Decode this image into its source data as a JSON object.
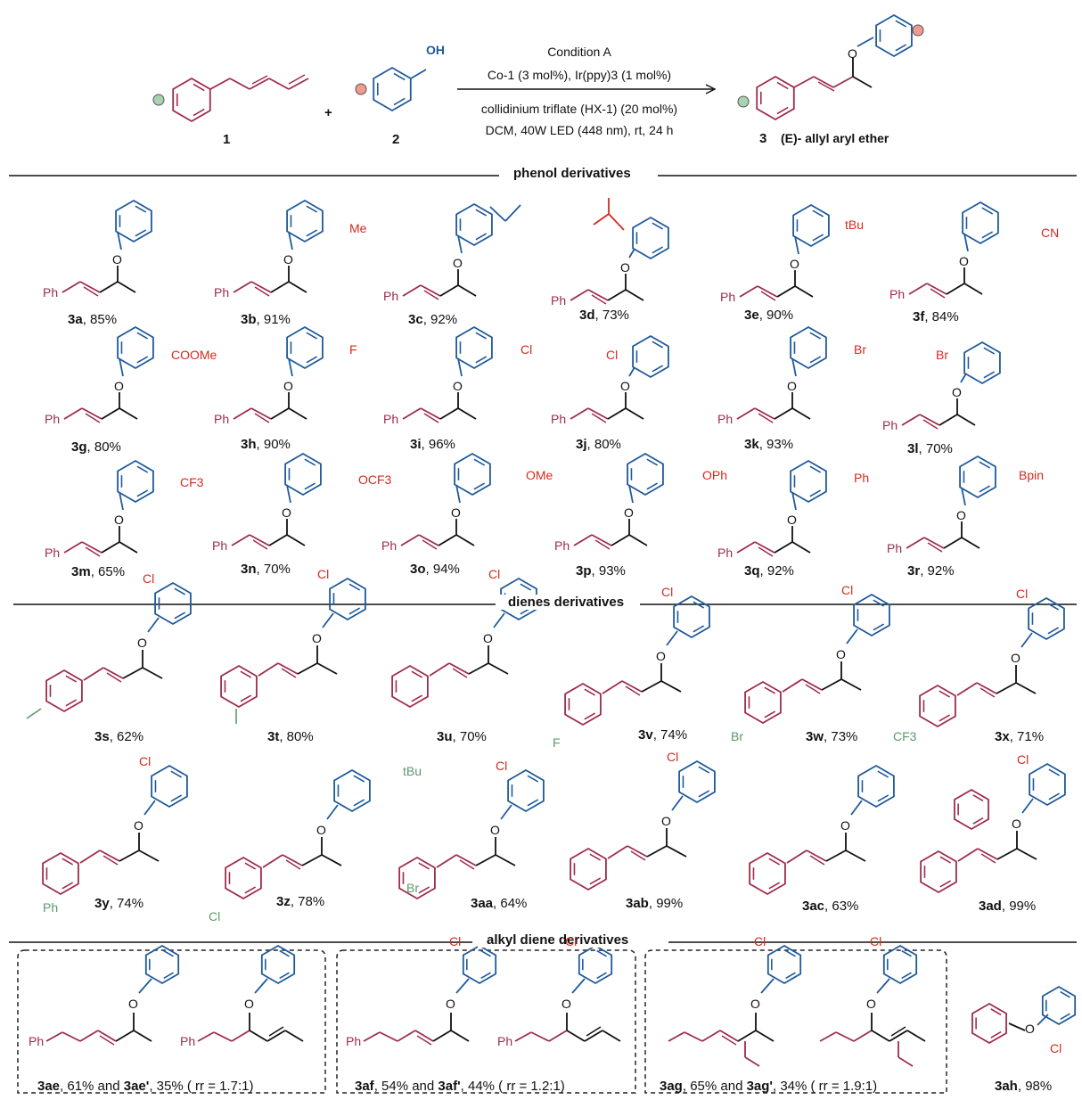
{
  "reaction": {
    "reactant1_label": "1",
    "reactant2_label": "2",
    "product_label": "3",
    "product_desc": "(E)- allyl aryl ether",
    "oh": "OH",
    "conditions": [
      "Condition A",
      "Co-1 (3 mol%), Ir(ppy)3 (1 mol%)",
      "collidinium triflate (HX-1) (20 mol%)",
      "DCM,  40W LED (448 nm), rt, 24 h"
    ],
    "plus": "+"
  },
  "sections": [
    "phenol derivatives",
    "dienes derivatives",
    "alkyl diene derivatives"
  ],
  "compounds": [
    {
      "id": "3a",
      "yield": "85%",
      "sub": ""
    },
    {
      "id": "3b",
      "yield": "91%",
      "sub": "Me"
    },
    {
      "id": "3c",
      "yield": "92%",
      "sub": ""
    },
    {
      "id": "3d",
      "yield": "73%",
      "sub": ""
    },
    {
      "id": "3e",
      "yield": "90%",
      "sub": "tBu"
    },
    {
      "id": "3f",
      "yield": "84%",
      "sub": "CN"
    },
    {
      "id": "3g",
      "yield": "80%",
      "sub": "COOMe"
    },
    {
      "id": "3h",
      "yield": "90%",
      "sub": "F"
    },
    {
      "id": "3i",
      "yield": "96%",
      "sub": "Cl"
    },
    {
      "id": "3j",
      "yield": "80%",
      "sub": "Cl"
    },
    {
      "id": "3k",
      "yield": "93%",
      "sub": "Br"
    },
    {
      "id": "3l",
      "yield": "70%",
      "sub": "Br"
    },
    {
      "id": "3m",
      "yield": "65%",
      "sub": "CF3"
    },
    {
      "id": "3n",
      "yield": "70%",
      "sub": "OCF3"
    },
    {
      "id": "3o",
      "yield": "94%",
      "sub": "OMe"
    },
    {
      "id": "3p",
      "yield": "93%",
      "sub": "OPh"
    },
    {
      "id": "3q",
      "yield": "92%",
      "sub": "Ph"
    },
    {
      "id": "3r",
      "yield": "92%",
      "sub": "Bpin"
    },
    {
      "id": "3s",
      "yield": "62%",
      "sub": ""
    },
    {
      "id": "3t",
      "yield": "80%",
      "sub": ""
    },
    {
      "id": "3u",
      "yield": "70%",
      "sub": "tBu"
    },
    {
      "id": "3v",
      "yield": "74%",
      "sub": "F"
    },
    {
      "id": "3w",
      "yield": "73%",
      "sub": "Br"
    },
    {
      "id": "3x",
      "yield": "71%",
      "sub": "CF3"
    },
    {
      "id": "3y",
      "yield": "74%",
      "sub": "Ph"
    },
    {
      "id": "3z",
      "yield": "78%",
      "sub": "Cl"
    },
    {
      "id": "3aa",
      "yield": "64%",
      "sub": "Br"
    },
    {
      "id": "3ab",
      "yield": "99%",
      "sub": ""
    },
    {
      "id": "3ac",
      "yield": "63%",
      "sub": ""
    },
    {
      "id": "3ad",
      "yield": "99%",
      "sub": ""
    }
  ],
  "boxes": [
    {
      "a": "3ae",
      "ay": "61%",
      "b": "3ae'",
      "by": "35%",
      "rr": "rr = 1.7:1"
    },
    {
      "a": "3af",
      "ay": "54%",
      "b": "3af'",
      "by": "44%",
      "rr": "rr = 1.2:1"
    },
    {
      "a": "3ag",
      "ay": "65%",
      "b": "3ag'",
      "by": "34%",
      "rr": "rr = 1.9:1"
    }
  ],
  "last": {
    "id": "3ah",
    "yield": "98%"
  },
  "atoms": {
    "ph": "Ph",
    "o": "O",
    "cl": "Cl",
    "and": "and"
  }
}
